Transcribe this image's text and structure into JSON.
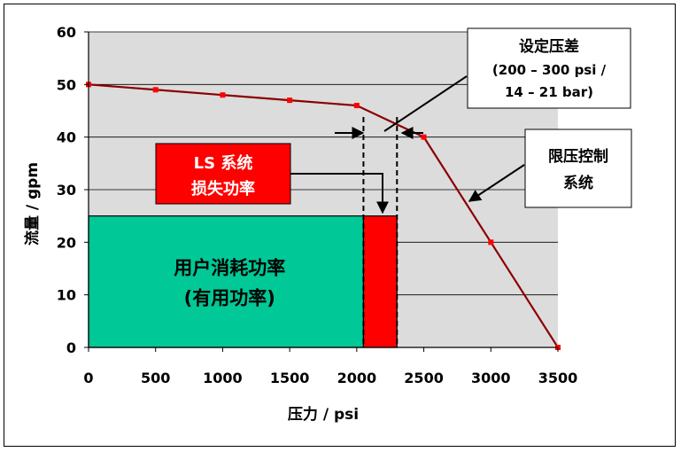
{
  "chart_data": {
    "type": "line",
    "xlabel": "压力 / psi",
    "ylabel": "流量 / gpm",
    "xlim": [
      0,
      3500
    ],
    "ylim": [
      0,
      60
    ],
    "x_ticks": [
      "0",
      "500",
      "1000",
      "1500",
      "2000",
      "2500",
      "3000",
      "3500"
    ],
    "y_ticks": [
      "0",
      "10",
      "20",
      "30",
      "40",
      "50",
      "60"
    ],
    "grid": "horizontal",
    "series": [
      {
        "color": "#8b0000",
        "marker_color": "#ff0000",
        "x": [
          0,
          500,
          1000,
          1500,
          2000,
          2500,
          3000,
          3500
        ],
        "y": [
          50,
          49,
          48,
          47,
          46,
          40,
          20,
          0
        ]
      }
    ],
    "regions": [
      {
        "label_lines": [
          "用户消耗功率",
          "(有用功率)"
        ],
        "x_range": [
          0,
          2050
        ],
        "y_range": [
          0,
          25
        ],
        "color": "#00c896"
      },
      {
        "x_range": [
          2050,
          2300
        ],
        "y_range": [
          0,
          25
        ],
        "color": "#ff0000"
      }
    ],
    "annotations": {
      "ls_loss": {
        "lines": [
          "LS 系统",
          "损失功率"
        ],
        "color": "#ff0000"
      },
      "set_pressure": {
        "lines": [
          "设定压差",
          "(200 – 300 psi /",
          "14 – 21 bar)"
        ]
      },
      "limit_control": {
        "lines": [
          "限压控制",
          "系统"
        ]
      }
    },
    "dashed_lines_x": [
      2050,
      2300
    ]
  }
}
